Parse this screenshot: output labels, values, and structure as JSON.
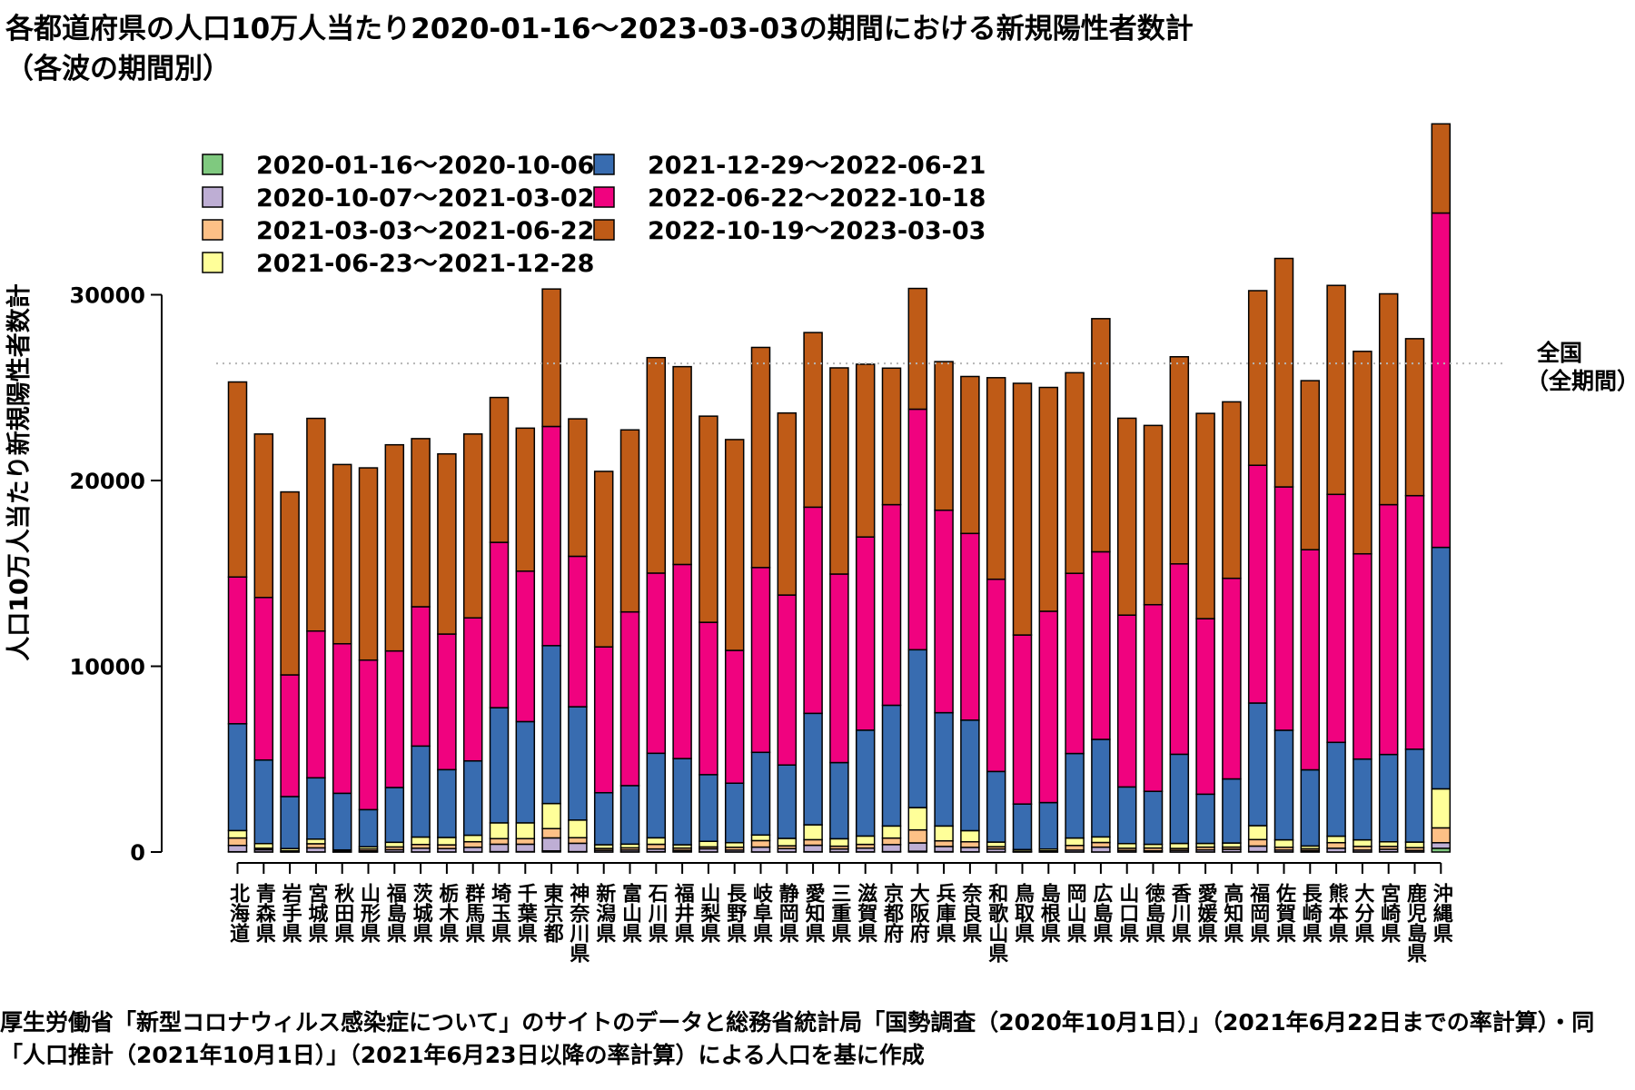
{
  "chart_data": {
    "type": "bar",
    "stacked": true,
    "title": "各都道府県の人口10万人当たり2020-01-16～2023-03-03の期間における新規陽性者数計",
    "subtitle": "（各波の期間別）",
    "ylabel": "人口10万人当たり新規陽性者数計",
    "ylim": [
      0,
      40000
    ],
    "yticks": [
      0,
      10000,
      20000,
      30000
    ],
    "grid": false,
    "legend_position": "top-left",
    "reference_line": {
      "label_line1": "全国",
      "label_line2": "（全期間）",
      "value": 26300,
      "style": "dotted"
    },
    "source": "厚生労働省「新型コロナウィルス感染症について」のサイトのデータと総務省統計局「国勢調査（2020年10月1日）」（2021年6月22日までの率計算）・同「人口推計（2021年10月1日）」（2021年6月23日以降の率計算）による人口を基に作成",
    "categories": [
      "北海道",
      "青森県",
      "岩手県",
      "宮城県",
      "秋田県",
      "山形県",
      "福島県",
      "茨城県",
      "栃木県",
      "群馬県",
      "埼玉県",
      "千葉県",
      "東京都",
      "神奈川県",
      "新潟県",
      "富山県",
      "石川県",
      "福井県",
      "山梨県",
      "長野県",
      "岐阜県",
      "静岡県",
      "愛知県",
      "三重県",
      "滋賀県",
      "京都府",
      "大阪府",
      "兵庫県",
      "奈良県",
      "和歌山県",
      "鳥取県",
      "島根県",
      "岡山県",
      "広島県",
      "山口県",
      "徳島県",
      "香川県",
      "愛媛県",
      "高知県",
      "福岡県",
      "佐賀県",
      "長崎県",
      "熊本県",
      "大分県",
      "宮崎県",
      "鹿児島県",
      "沖縄県"
    ],
    "series": [
      {
        "name": "2020-01-16～2020-10-06",
        "color": "#7fc97f",
        "values": [
          15,
          3,
          1,
          5,
          1,
          1,
          3,
          5,
          4,
          4,
          20,
          20,
          60,
          20,
          2,
          5,
          15,
          10,
          5,
          4,
          5,
          4,
          15,
          4,
          10,
          20,
          40,
          20,
          10,
          5,
          3,
          1,
          3,
          3,
          3,
          5,
          2,
          3,
          5,
          20,
          5,
          5,
          3,
          3,
          10,
          5,
          200
        ]
      },
      {
        "name": "2020-10-07～2021-03-02",
        "color": "#beaed4",
        "values": [
          340,
          120,
          25,
          220,
          10,
          60,
          120,
          200,
          180,
          250,
          400,
          400,
          700,
          450,
          90,
          100,
          150,
          80,
          170,
          100,
          260,
          180,
          350,
          160,
          200,
          380,
          450,
          280,
          240,
          160,
          10,
          20,
          100,
          260,
          80,
          60,
          90,
          110,
          140,
          300,
          100,
          70,
          200,
          100,
          140,
          80,
          300
        ]
      },
      {
        "name": "2021-03-03～2021-06-22",
        "color": "#fdc086",
        "values": [
          400,
          80,
          40,
          220,
          30,
          100,
          150,
          200,
          200,
          300,
          300,
          300,
          500,
          300,
          100,
          120,
          250,
          120,
          100,
          150,
          350,
          150,
          300,
          150,
          200,
          350,
          700,
          300,
          300,
          120,
          30,
          40,
          250,
          250,
          120,
          150,
          100,
          150,
          120,
          350,
          150,
          100,
          300,
          200,
          150,
          150,
          800
        ]
      },
      {
        "name": "2021-06-23～2021-12-28",
        "color": "#ffff99",
        "values": [
          400,
          250,
          120,
          250,
          70,
          120,
          250,
          400,
          400,
          350,
          850,
          850,
          1350,
          950,
          200,
          200,
          350,
          180,
          300,
          250,
          300,
          400,
          800,
          400,
          450,
          650,
          1200,
          800,
          600,
          250,
          90,
          100,
          400,
          300,
          250,
          200,
          270,
          200,
          220,
          750,
          400,
          150,
          350,
          350,
          250,
          300,
          2100
        ]
      },
      {
        "name": "2021-12-29～2022-06-21",
        "color": "#386cb0",
        "values": [
          5750,
          4500,
          2800,
          3300,
          3050,
          2000,
          2950,
          4900,
          3650,
          4000,
          6200,
          5450,
          8500,
          6100,
          2800,
          3150,
          4550,
          4640,
          3590,
          3200,
          4450,
          3950,
          6000,
          4100,
          5700,
          6500,
          8500,
          6100,
          5950,
          3800,
          2450,
          2500,
          4550,
          5250,
          3050,
          2850,
          4800,
          2650,
          3450,
          6600,
          5900,
          4100,
          5050,
          4350,
          4700,
          5000,
          13000
        ]
      },
      {
        "name": "2022-06-22～2022-10-18",
        "color": "#f0027f",
        "values": [
          7900,
          8750,
          6550,
          7900,
          8050,
          8050,
          7350,
          7500,
          7300,
          7700,
          8900,
          8100,
          11800,
          8100,
          7850,
          9350,
          9700,
          10450,
          8200,
          7150,
          9950,
          9150,
          11100,
          10150,
          10400,
          10800,
          12950,
          10900,
          10050,
          10350,
          9100,
          10300,
          9700,
          10100,
          9250,
          10050,
          10250,
          9450,
          10800,
          12800,
          13100,
          11850,
          13350,
          11050,
          13450,
          13650,
          18000
        ]
      },
      {
        "name": "2022-10-19～2023-03-03",
        "color": "#bf5b17",
        "values": [
          10500,
          8800,
          9850,
          11450,
          9650,
          10350,
          11100,
          9050,
          9700,
          9900,
          7800,
          7700,
          7400,
          7400,
          9450,
          9800,
          11600,
          10650,
          11100,
          11350,
          11850,
          9800,
          9400,
          11100,
          9300,
          7350,
          6500,
          8000,
          8450,
          10850,
          13550,
          12050,
          10800,
          12550,
          10600,
          9650,
          11150,
          11050,
          9500,
          9400,
          12300,
          9100,
          11250,
          10900,
          11350,
          8450,
          4800
        ]
      }
    ]
  }
}
